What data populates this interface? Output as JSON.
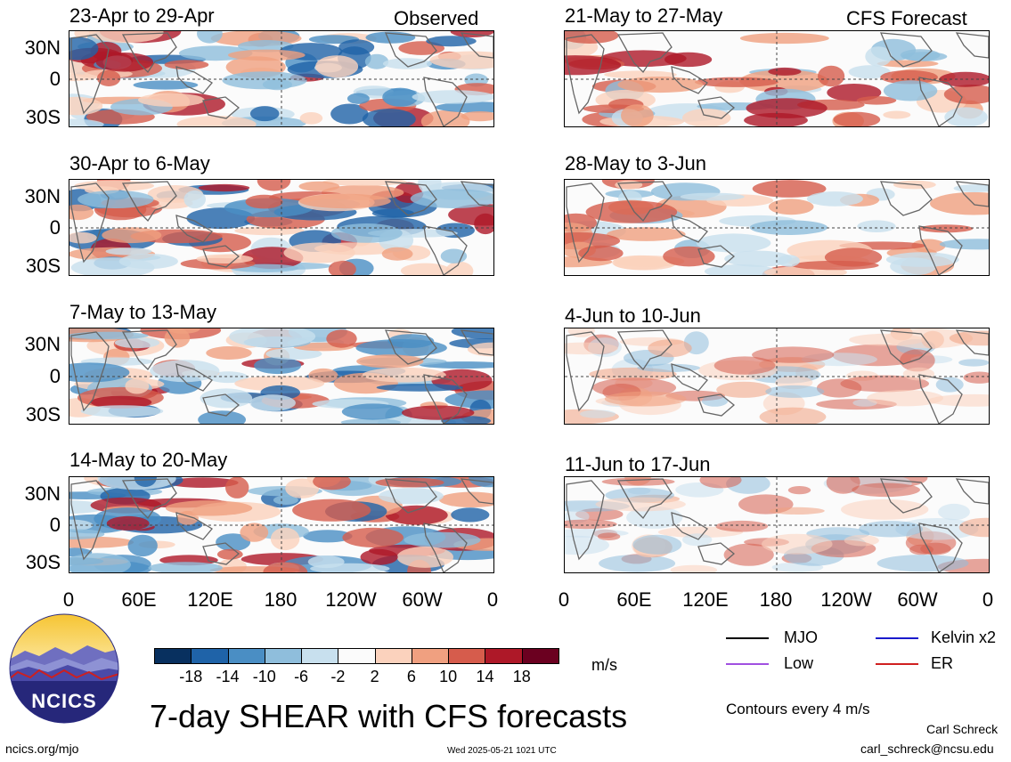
{
  "header": {
    "observed_label": "Observed",
    "forecast_label": "CFS Forecast"
  },
  "observed_panels": [
    {
      "title": "23-Apr to 29-Apr"
    },
    {
      "title": "30-Apr to 6-May"
    },
    {
      "title": "7-May to 13-May"
    },
    {
      "title": "14-May to 20-May"
    }
  ],
  "forecast_panels": [
    {
      "title": "21-May to 27-May"
    },
    {
      "title": "28-May to 3-Jun"
    },
    {
      "title": "4-Jun to 10-Jun"
    },
    {
      "title": "11-Jun to 17-Jun"
    }
  ],
  "lat_labels": [
    "30N",
    "0",
    "30S"
  ],
  "lon_labels": [
    "0",
    "60E",
    "120E",
    "180",
    "120W",
    "60W",
    "0"
  ],
  "colorbar": {
    "ticks": [
      "-18",
      "-14",
      "-10",
      "-6",
      "-2",
      "2",
      "6",
      "10",
      "14",
      "18"
    ],
    "unit": "m/s",
    "colors": [
      "#08305f",
      "#1f63a8",
      "#4a8ec4",
      "#8fbedc",
      "#c8e0ee",
      "#fbfbfb",
      "#fbd2bd",
      "#f0a080",
      "#d65c4c",
      "#ae1828",
      "#6b0020"
    ]
  },
  "contour_legend": {
    "items": [
      {
        "label": "MJO",
        "color": "#000000"
      },
      {
        "label": "Kelvin x2",
        "color": "#1a1acc"
      },
      {
        "label": "Low",
        "color": "#a050e0"
      },
      {
        "label": "ER",
        "color": "#d02020"
      }
    ],
    "note": "Contours every 4 m/s"
  },
  "logo_text": "NCICS",
  "main_title": "7-day SHEAR with CFS forecasts",
  "author": "Carl Schreck",
  "email": "carl_schreck@ncsu.edu",
  "site": "ncics.org/mjo",
  "timestamp": "Wed 2025-05-21 1021 UTC"
}
